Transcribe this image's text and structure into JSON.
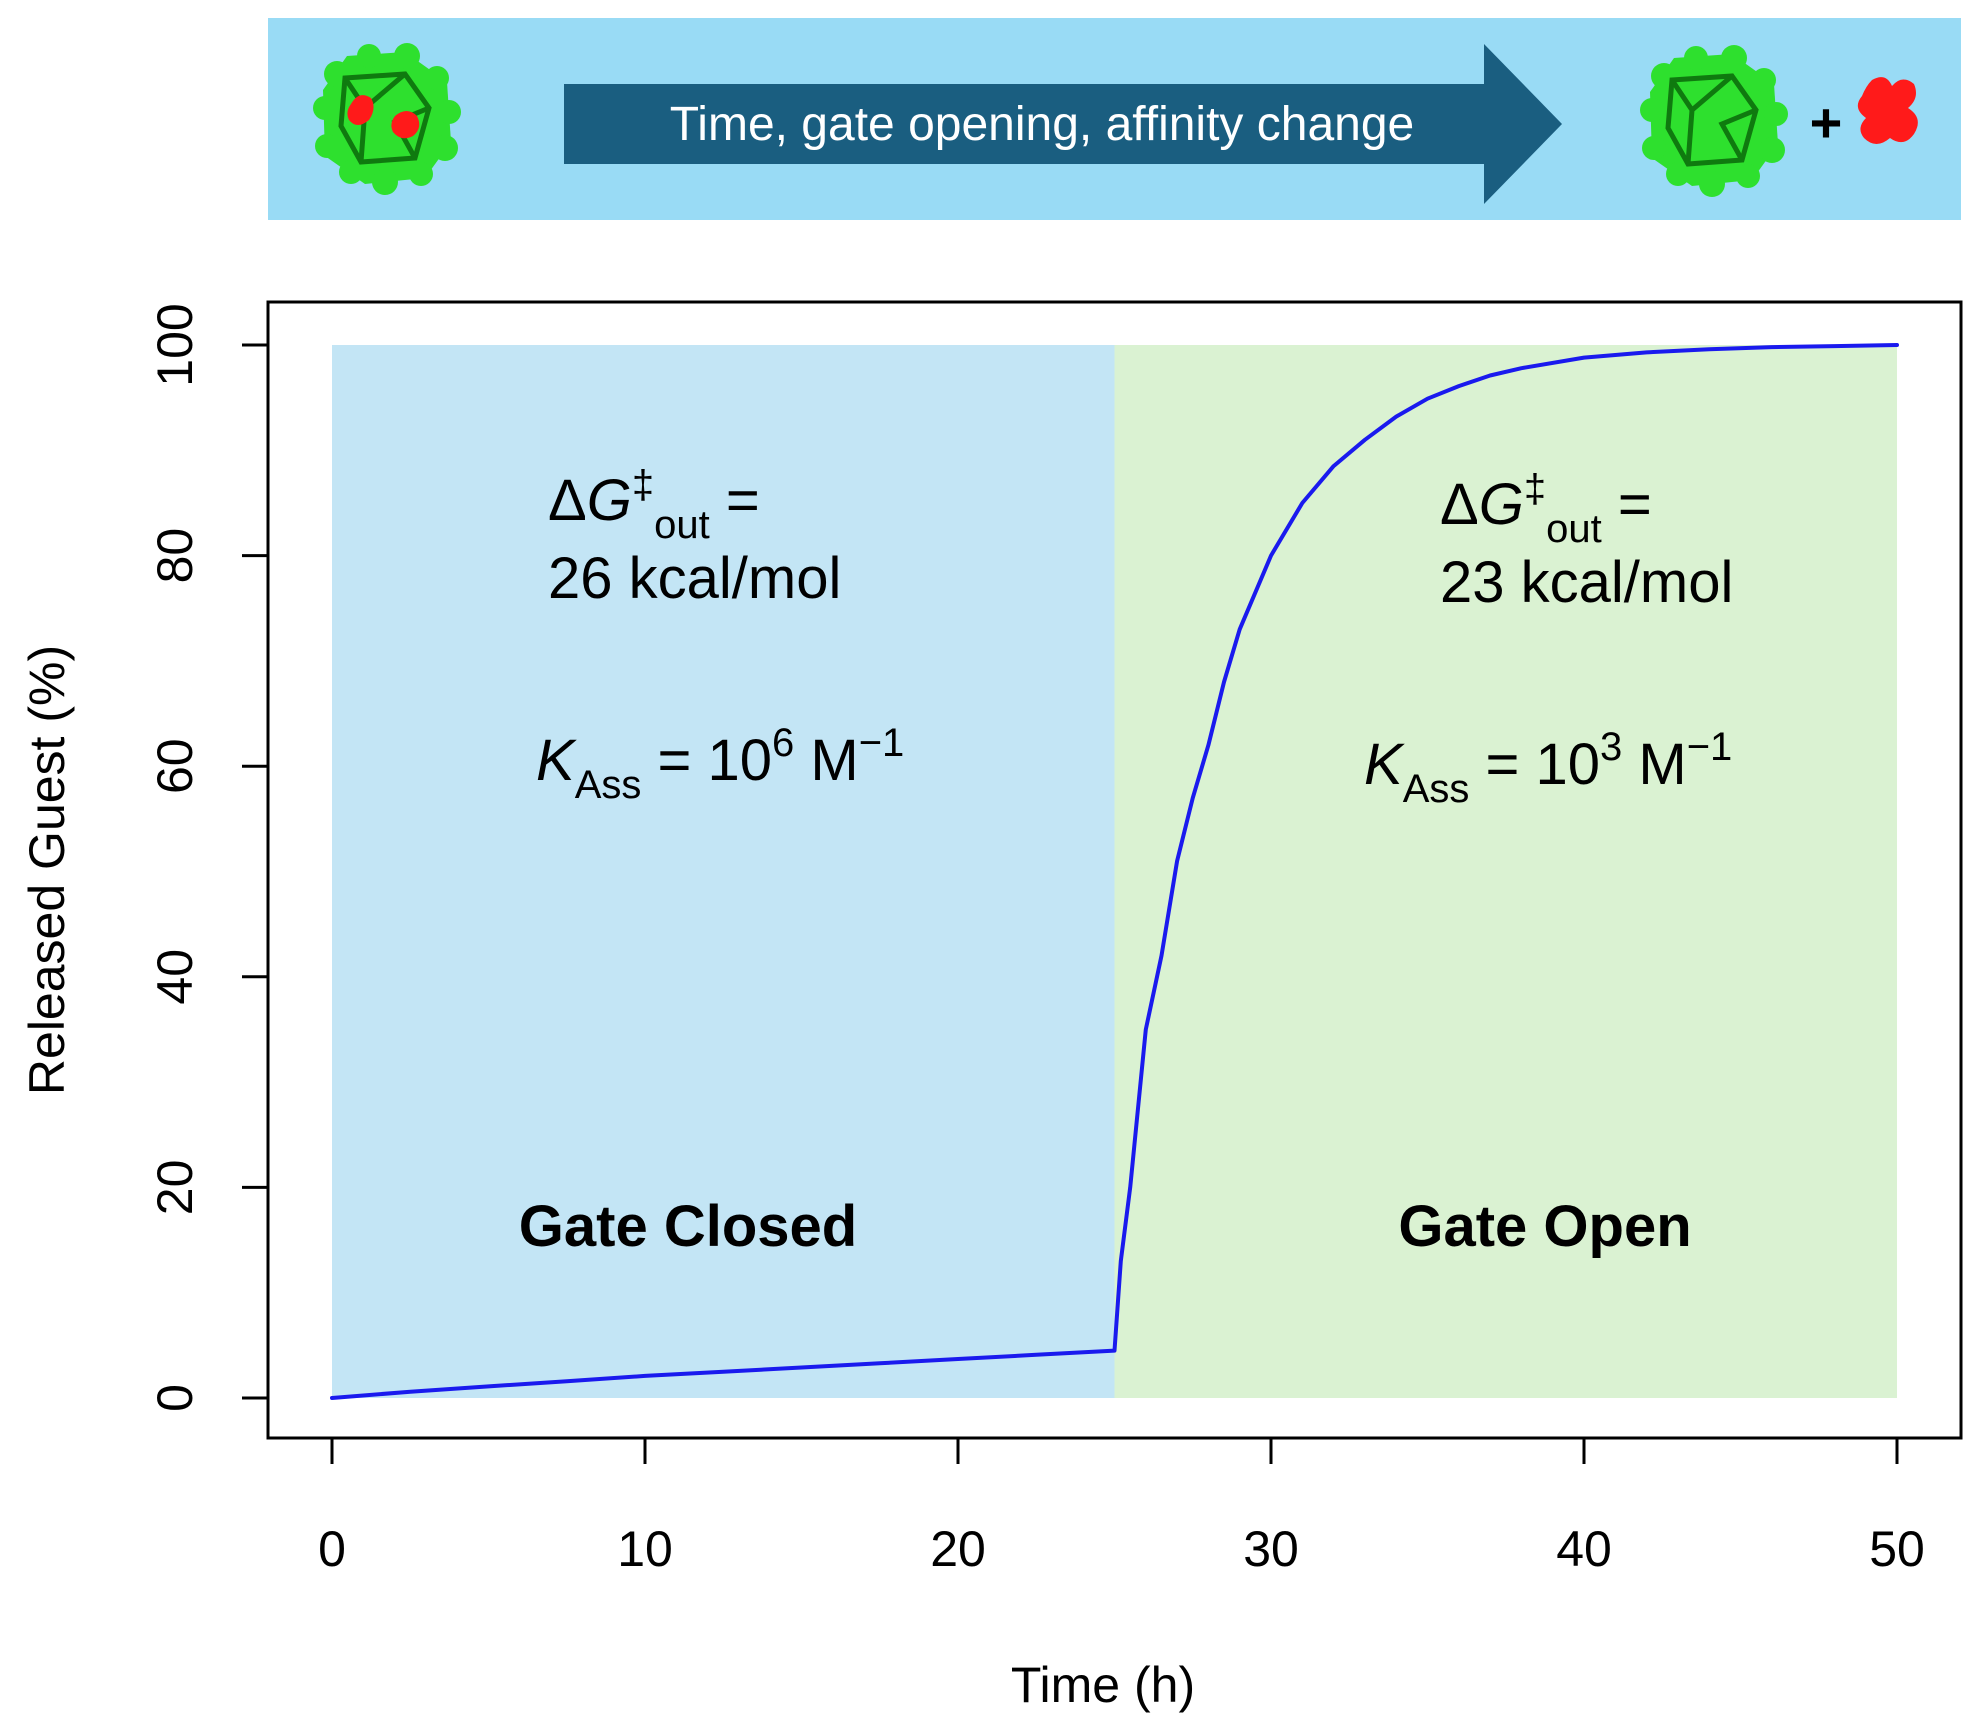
{
  "banner": {
    "arrow_text": "Time, gate opening, affinity change",
    "plus_sign": "+",
    "background_color": "#99dbf5",
    "arrow_color": "#1a5e80",
    "cage_color": "#2ee02e",
    "guest_color": "#ff1a1a",
    "icons": [
      "cage-with-guest-icon",
      "empty-cage-icon",
      "guest-molecule-icon"
    ]
  },
  "chart_data": {
    "type": "line",
    "xlabel": "Time (h)",
    "ylabel": "Released Guest (%)",
    "xlim": [
      0,
      50
    ],
    "ylim": [
      0,
      100
    ],
    "x_ticks": [
      "0",
      "10",
      "20",
      "30",
      "40",
      "50"
    ],
    "y_ticks": [
      "0",
      "20",
      "40",
      "60",
      "80",
      "100"
    ],
    "grid": false,
    "series": [
      {
        "color": "#1a1aee",
        "x": [
          0,
          2.5,
          5,
          7.5,
          10,
          12.5,
          15,
          17.5,
          20,
          22.5,
          25,
          25.2,
          25.5,
          26,
          26.5,
          27,
          27.5,
          28,
          28.5,
          29,
          30,
          31,
          32,
          33,
          34,
          35,
          36,
          37,
          38,
          40,
          42,
          44,
          46,
          48,
          50
        ],
        "y": [
          0,
          0.6,
          1.1,
          1.6,
          2.1,
          2.5,
          2.9,
          3.3,
          3.7,
          4.1,
          4.5,
          13,
          20,
          35,
          42,
          51,
          57,
          62,
          68,
          73,
          80,
          85,
          88.5,
          91,
          93.2,
          94.9,
          96.1,
          97.1,
          97.8,
          98.8,
          99.3,
          99.6,
          99.8,
          99.9,
          100
        ]
      }
    ],
    "regions": [
      {
        "label": "Gate Closed",
        "x_range": [
          0,
          25
        ],
        "color": "#c3e5f5",
        "dG_symbol": "ΔG",
        "dG_superscript": "‡",
        "dG_subscript": "out",
        "dG_equals": "=",
        "dG_value": "26 kcal/mol",
        "K_symbol": "K",
        "K_subscript": "Ass",
        "K_equals": "= 10",
        "K_exponent": "6",
        "K_unit": "M",
        "K_unit_exponent": "−1"
      },
      {
        "label": "Gate Open",
        "x_range": [
          25,
          50
        ],
        "color": "#daf2d2",
        "dG_symbol": "ΔG",
        "dG_superscript": "‡",
        "dG_subscript": "out",
        "dG_equals": "=",
        "dG_value": "23 kcal/mol",
        "K_symbol": "K",
        "K_subscript": "Ass",
        "K_equals": "= 10",
        "K_exponent": "3",
        "K_unit": "M",
        "K_unit_exponent": "−1"
      }
    ]
  }
}
